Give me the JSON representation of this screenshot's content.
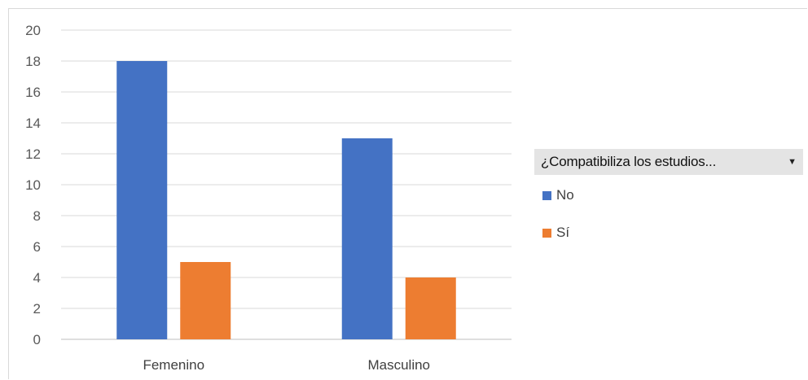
{
  "chart_data": {
    "type": "bar",
    "categories": [
      "Femenino",
      "Masculino"
    ],
    "series": [
      {
        "name": "No",
        "values": [
          18,
          13
        ],
        "color": "#4472c4"
      },
      {
        "name": "Sí",
        "values": [
          5,
          4
        ],
        "color": "#ed7d31"
      }
    ],
    "ylim": [
      0,
      20
    ],
    "yticks": [
      "0",
      "2",
      "4",
      "6",
      "8",
      "10",
      "12",
      "14",
      "16",
      "18",
      "20"
    ],
    "grid": true,
    "legend_position": "right",
    "legend_title": "¿Compatibiliza los estudios...",
    "legend_title_icon": "chevron-down-icon"
  }
}
